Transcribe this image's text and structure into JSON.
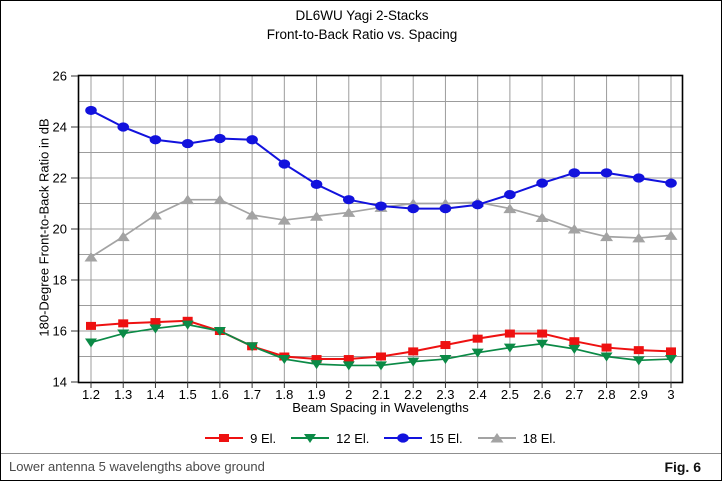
{
  "window": {
    "footer_note": "Lower antenna 5 wavelengths above ground",
    "figure_label": "Fig. 6"
  },
  "colors": {
    "grid": "#9c9c9c",
    "plot_border": "#000000",
    "tick": "#333333",
    "text": "#000000",
    "footer_text": "#4a4a4a"
  },
  "chart_data": {
    "type": "line",
    "title": "DL6WU Yagi 2-Stacks",
    "subtitle": "Front-to-Back Ratio vs. Spacing",
    "xlabel": "Beam Spacing in Wavelengths",
    "ylabel": "180-Degree Front-to-Back Ratio in dB",
    "categories": [
      "1.2",
      "1.3",
      "1.4",
      "1.5",
      "1.6",
      "1.7",
      "1.8",
      "1.9",
      "2",
      "2.1",
      "2.2",
      "2.3",
      "2.4",
      "2.5",
      "2.6",
      "2.7",
      "2.8",
      "2.9",
      "3"
    ],
    "x": [
      1.2,
      1.3,
      1.4,
      1.5,
      1.6,
      1.7,
      1.8,
      1.9,
      2.0,
      2.1,
      2.2,
      2.3,
      2.4,
      2.5,
      2.6,
      2.7,
      2.8,
      2.9,
      3.0
    ],
    "ylim": [
      14,
      26
    ],
    "ytick_step": 1,
    "ytick_label_step": 2,
    "grid": true,
    "legend_position": "bottom",
    "series": [
      {
        "name": "9 El.",
        "marker": "square",
        "color": "#ee1111",
        "values": [
          16.2,
          16.3,
          16.35,
          16.4,
          16.0,
          15.4,
          15.0,
          14.9,
          14.9,
          15.0,
          15.2,
          15.45,
          15.7,
          15.9,
          15.9,
          15.6,
          15.35,
          15.25,
          15.2
        ]
      },
      {
        "name": "12 El.",
        "marker": "triangle-down",
        "color": "#0b8a46",
        "values": [
          15.55,
          15.9,
          16.1,
          16.25,
          16.0,
          15.4,
          14.9,
          14.7,
          14.65,
          14.65,
          14.8,
          14.9,
          15.15,
          15.35,
          15.5,
          15.3,
          15.0,
          14.85,
          14.9
        ]
      },
      {
        "name": "15 El.",
        "marker": "circle",
        "color": "#1212dd",
        "values": [
          24.65,
          24.0,
          23.5,
          23.35,
          23.55,
          23.5,
          22.55,
          21.75,
          21.15,
          20.9,
          20.8,
          20.8,
          20.95,
          21.35,
          21.8,
          22.2,
          22.2,
          22.0,
          21.8
        ]
      },
      {
        "name": "18 El.",
        "marker": "triangle-up",
        "color": "#a3a3a3",
        "values": [
          18.9,
          19.7,
          20.55,
          21.15,
          21.15,
          20.55,
          20.35,
          20.5,
          20.65,
          20.85,
          21.0,
          21.0,
          21.05,
          20.8,
          20.45,
          20.0,
          19.7,
          19.65,
          19.75
        ]
      }
    ]
  }
}
